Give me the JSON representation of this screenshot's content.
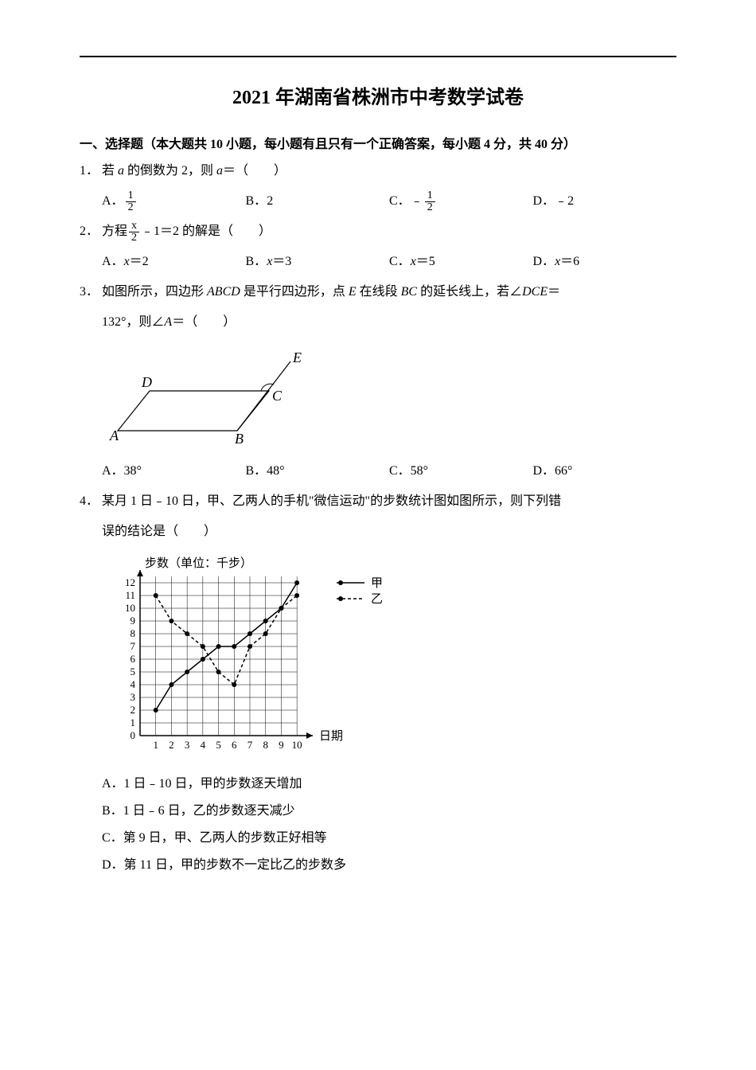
{
  "title": "2021 年湖南省株洲市中考数学试卷",
  "section1": {
    "heading": "一、选择题（本大题共 10 小题，每小题有且只有一个正确答案，每小题 4 分，共 40 分）"
  },
  "q1": {
    "num": "1．",
    "text_a": "若 ",
    "var_a": "a",
    "text_b": " 的倒数为 2，则 ",
    "var_b": "a",
    "text_c": "＝（　　）",
    "optA_label": "A．",
    "optA_num": "1",
    "optA_den": "2",
    "optB_label": "B．",
    "optB_val": "2",
    "optC_label": "C．",
    "optC_prefix": "﹣",
    "optC_num": "1",
    "optC_den": "2",
    "optD_label": "D．",
    "optD_val": "﹣2"
  },
  "q2": {
    "num": "2．",
    "text_a": "方程",
    "frac_num": "x",
    "frac_den": "2",
    "text_b": "﹣1＝2 的解是（　　）",
    "optA_label": "A．",
    "optA_var": "x",
    "optA_val": "＝2",
    "optB_label": "B．",
    "optB_var": "x",
    "optB_val": "＝3",
    "optC_label": "C．",
    "optC_var": "x",
    "optC_val": "＝5",
    "optD_label": "D．",
    "optD_var": "x",
    "optD_val": "＝6"
  },
  "q3": {
    "num": "3．",
    "text_a": "如图所示，四边形 ",
    "var_abcd": "ABCD",
    "text_b": " 是平行四边形，点 ",
    "var_e": "E",
    "text_c": " 在线段 ",
    "var_bc": "BC",
    "text_d": " 的延长线上，若∠",
    "var_dce": "DCE",
    "text_e": "＝",
    "line2_a": "132°，则∠",
    "var_a": "A",
    "line2_b": "＝（　　）",
    "optA": "A．38°",
    "optB": "B．48°",
    "optC": "C．58°",
    "optD": "D．66°",
    "fig": {
      "labels": {
        "A": "A",
        "B": "B",
        "C": "C",
        "D": "D",
        "E": "E"
      },
      "stroke": "#000000",
      "stroke_width": 1.2
    }
  },
  "q4": {
    "num": "4．",
    "text_a": "某月 1 日﹣10 日，甲、乙两人的手机\"微信运动\"的步数统计图如图所示，则下列错",
    "line2": "误的结论是（　　）",
    "chart": {
      "y_label": "步数（单位：千步）",
      "x_label": "日期",
      "legend_jia": "甲",
      "legend_yi": "乙",
      "x_ticks": [
        "1",
        "2",
        "3",
        "4",
        "5",
        "6",
        "7",
        "8",
        "9",
        "10"
      ],
      "y_ticks": [
        "0",
        "1",
        "2",
        "3",
        "4",
        "5",
        "6",
        "7",
        "8",
        "9",
        "10",
        "11",
        "12"
      ],
      "xlim": [
        0,
        10.5
      ],
      "ylim": [
        0,
        12.5
      ],
      "grid_color": "#000000",
      "axis_color": "#000000",
      "bg": "#ffffff",
      "series_jia": {
        "style": "solid",
        "color": "#000000",
        "marker": "circle",
        "data": [
          [
            1,
            2
          ],
          [
            2,
            4
          ],
          [
            3,
            5
          ],
          [
            4,
            6
          ],
          [
            5,
            7
          ],
          [
            6,
            7
          ],
          [
            7,
            8
          ],
          [
            8,
            9
          ],
          [
            9,
            10
          ],
          [
            10,
            12
          ]
        ]
      },
      "series_yi": {
        "style": "dashed",
        "color": "#000000",
        "marker": "circle",
        "data": [
          [
            1,
            11
          ],
          [
            2,
            9
          ],
          [
            3,
            8
          ],
          [
            4,
            7
          ],
          [
            5,
            5
          ],
          [
            6,
            4
          ],
          [
            7,
            7
          ],
          [
            8,
            8
          ],
          [
            9,
            10
          ],
          [
            10,
            11
          ]
        ]
      }
    },
    "optA": "A．1 日﹣10 日，甲的步数逐天增加",
    "optB": "B．1 日﹣6 日，乙的步数逐天减少",
    "optC": "C．第 9 日，甲、乙两人的步数正好相等",
    "optD": "D．第 11 日，甲的步数不一定比乙的步数多"
  }
}
